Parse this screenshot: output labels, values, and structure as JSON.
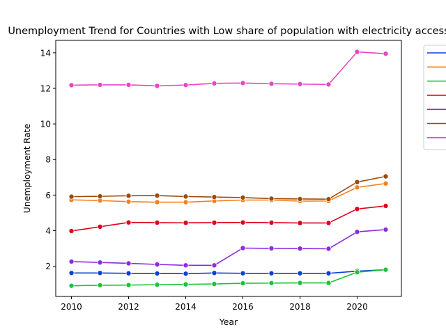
{
  "chart_data": {
    "type": "line",
    "title": "Unemployment Trend for Countries with Low share of population with electricity access",
    "xlabel": "Year",
    "ylabel": "Unemployment Rate",
    "xlim": [
      2009.45,
      2021.55
    ],
    "ylim": [
      0.3,
      14.7
    ],
    "xticks": [
      2010,
      2012,
      2014,
      2016,
      2018,
      2020
    ],
    "yticks": [
      2,
      4,
      6,
      8,
      10,
      12,
      14
    ],
    "grid": false,
    "legend_position": "upper-right-outside",
    "x": [
      2010,
      2011,
      2012,
      2013,
      2014,
      2015,
      2016,
      2017,
      2018,
      2019,
      2020,
      2021
    ],
    "series": [
      {
        "color": "#0b3fd6",
        "values": [
          1.62,
          1.62,
          1.6,
          1.59,
          1.58,
          1.62,
          1.6,
          1.6,
          1.6,
          1.6,
          1.72,
          1.8
        ]
      },
      {
        "color": "#f28220",
        "values": [
          5.73,
          5.69,
          5.63,
          5.6,
          5.6,
          5.67,
          5.72,
          5.72,
          5.66,
          5.67,
          6.43,
          6.65
        ]
      },
      {
        "color": "#1ac43a",
        "values": [
          0.9,
          0.93,
          0.94,
          0.96,
          0.98,
          1.0,
          1.04,
          1.05,
          1.06,
          1.06,
          1.66,
          1.8
        ]
      },
      {
        "color": "#e0001a",
        "values": [
          3.98,
          4.22,
          4.46,
          4.45,
          4.44,
          4.45,
          4.46,
          4.45,
          4.43,
          4.43,
          5.22,
          5.39
        ]
      },
      {
        "color": "#8b2be2",
        "values": [
          2.26,
          2.21,
          2.16,
          2.1,
          2.05,
          2.05,
          3.02,
          3.0,
          2.99,
          2.98,
          3.93,
          4.06
        ]
      },
      {
        "color": "#9c4a0a",
        "values": [
          5.91,
          5.93,
          5.96,
          5.97,
          5.92,
          5.89,
          5.86,
          5.8,
          5.78,
          5.77,
          6.73,
          7.05
        ]
      },
      {
        "color": "#e845c4",
        "values": [
          12.18,
          12.2,
          12.2,
          12.14,
          12.19,
          12.28,
          12.3,
          12.26,
          12.24,
          12.22,
          14.05,
          13.95
        ]
      }
    ]
  }
}
